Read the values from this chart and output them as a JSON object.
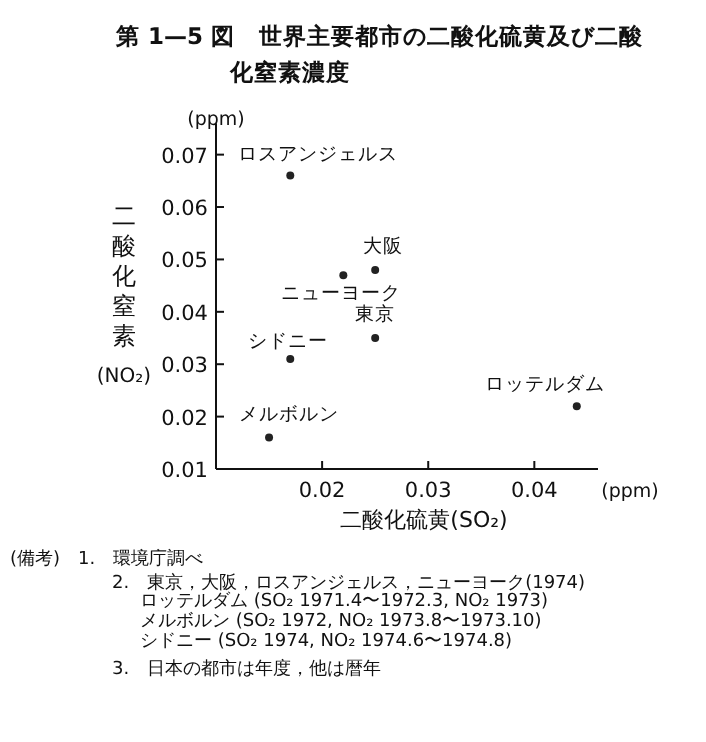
{
  "chart_data": {
    "type": "scatter",
    "title": "第 1—5 図　世界主要都市の二酸化硫黄及び二酸化窒素濃度",
    "xlabel": "二酸化硫黄(SO₂)",
    "ylabel": "二酸化窒素(NO₂)",
    "x": [
      0.017,
      0.025,
      0.022,
      0.025,
      0.017,
      0.015,
      0.044
    ],
    "series": [
      {
        "color": "#222222",
        "values": [
          0.066,
          0.048,
          0.047,
          0.035,
          0.031,
          0.016,
          0.022
        ]
      }
    ],
    "marker": "circle",
    "grid": false,
    "xlim": [
      0.01,
      0.046
    ],
    "ylim": [
      0.01,
      0.076
    ],
    "xticks": [
      0.02,
      0.03,
      0.04
    ],
    "yticks": [
      0.01,
      0.02,
      0.03,
      0.04,
      0.05,
      0.06,
      0.07
    ],
    "annotations": [
      "(ppm)",
      "(ppm)",
      {
        "text": "ロスアンジェルス",
        "x": 0.017,
        "y": 0.066
      },
      {
        "text": "大阪",
        "x": 0.025,
        "y": 0.048
      },
      {
        "text": "ニューヨーク",
        "x": 0.022,
        "y": 0.047
      },
      {
        "text": "東京",
        "x": 0.025,
        "y": 0.035
      },
      {
        "text": "シドニー",
        "x": 0.017,
        "y": 0.031
      },
      {
        "text": "メルボルン",
        "x": 0.015,
        "y": 0.016
      },
      {
        "text": "ロッテルダム",
        "x": 0.044,
        "y": 0.022
      },
      "(備考)　1.　環境庁調べ",
      "2.　東京，大阪，ロスアンジェルス，ニューヨーク(1974)",
      "ロッテルダム (SO₂ 1971.4〜1972.3, NO₂ 1973)",
      "メルボルン (SO₂ 1972, NO₂ 1973.8〜1973.10)",
      "シドニー (SO₂ 1974, NO₂ 1974.6〜1974.8)",
      "3.　日本の都市は年度，他は暦年"
    ]
  }
}
